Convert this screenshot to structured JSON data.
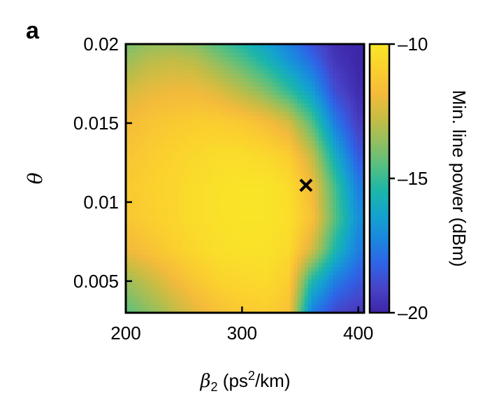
{
  "panel_label": "a",
  "chart_data": {
    "type": "heatmap",
    "title": "",
    "xlabel_symbol": "β",
    "xlabel_subscript": "2",
    "xlabel_unit_prefix": "(ps",
    "xlabel_unit_sup": "2",
    "xlabel_unit_suffix": "/km)",
    "ylabel": "θ",
    "xlim": [
      200,
      405
    ],
    "ylim": [
      0.003,
      0.02
    ],
    "x_ticks": [
      200,
      300,
      400
    ],
    "x_tick_labels": [
      "200",
      "300",
      "400"
    ],
    "y_ticks": [
      0.005,
      0.01,
      0.015,
      0.02
    ],
    "y_tick_labels": [
      "0.005",
      "0.01",
      "0.015",
      "0.02"
    ],
    "colorbar": {
      "label": "Min. line power (dBm)",
      "range": [
        -20,
        -10
      ],
      "ticks": [
        -10,
        -15,
        -20
      ],
      "tick_labels": [
        "–10",
        "–15",
        "–20"
      ],
      "colormap": [
        "#3e26a8",
        "#4743c8",
        "#2f63e6",
        "#1b86df",
        "#14a3ce",
        "#1cb6a9",
        "#55bf82",
        "#93bf5f",
        "#c8bc44",
        "#f5bb3b",
        "#fbd02e",
        "#f9e628"
      ]
    },
    "grid_x": [
      200,
      220,
      240,
      260,
      280,
      300,
      320,
      340,
      360,
      380,
      400
    ],
    "grid_y": [
      0.003,
      0.005,
      0.007,
      0.009,
      0.011,
      0.013,
      0.015,
      0.017,
      0.019,
      0.02
    ],
    "values": [
      [
        -14.5,
        -13.8,
        -13.0,
        -12.2,
        -11.6,
        -11.2,
        -11.0,
        -11.5,
        -17.5,
        -19.0,
        -19.5
      ],
      [
        -13.5,
        -12.8,
        -12.0,
        -11.3,
        -10.8,
        -10.6,
        -10.5,
        -11.0,
        -15.5,
        -17.5,
        -18.5
      ],
      [
        -12.0,
        -11.5,
        -11.0,
        -10.6,
        -10.3,
        -10.2,
        -10.2,
        -10.5,
        -12.5,
        -15.5,
        -17.5
      ],
      [
        -11.3,
        -11.0,
        -10.7,
        -10.4,
        -10.2,
        -10.1,
        -10.1,
        -10.3,
        -11.5,
        -14.5,
        -17.0
      ],
      [
        -11.2,
        -10.9,
        -10.7,
        -10.4,
        -10.2,
        -10.1,
        -10.1,
        -10.4,
        -11.8,
        -14.8,
        -17.5
      ],
      [
        -11.4,
        -11.1,
        -10.8,
        -10.6,
        -10.4,
        -10.4,
        -10.6,
        -11.0,
        -12.8,
        -16.0,
        -18.5
      ],
      [
        -11.8,
        -11.4,
        -11.2,
        -11.0,
        -11.0,
        -11.2,
        -11.6,
        -12.4,
        -14.5,
        -17.5,
        -19.3
      ],
      [
        -12.5,
        -12.1,
        -11.9,
        -11.9,
        -12.3,
        -13.0,
        -13.8,
        -15.0,
        -16.5,
        -18.8,
        -19.8
      ],
      [
        -13.5,
        -13.0,
        -12.8,
        -13.0,
        -13.8,
        -14.6,
        -15.6,
        -16.8,
        -18.0,
        -19.5,
        -20.0
      ],
      [
        -14.0,
        -13.6,
        -13.5,
        -13.8,
        -14.6,
        -15.4,
        -16.3,
        -17.4,
        -18.6,
        -19.7,
        -20.0
      ]
    ],
    "annotations": [
      {
        "type": "marker",
        "symbol": "×",
        "x": 355,
        "y": 0.011,
        "label": ""
      }
    ],
    "grid": false,
    "legend": "none"
  }
}
